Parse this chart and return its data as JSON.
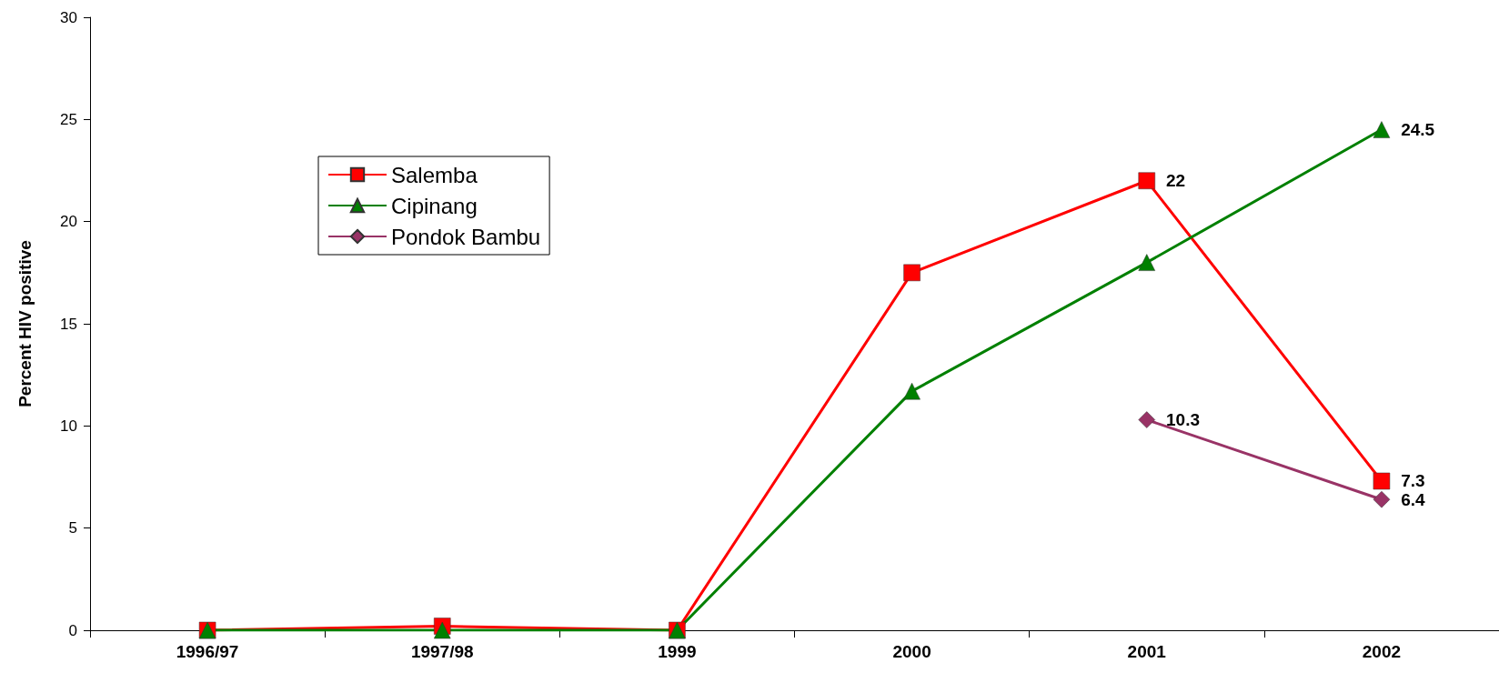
{
  "chart_data": {
    "type": "line",
    "ylabel": "Percent HIV positive",
    "categories": [
      "1996/97",
      "1997/98",
      "1999",
      "2000",
      "2001",
      "2002"
    ],
    "series": [
      {
        "name": "Salemba",
        "color": "#ff0000",
        "marker": "square",
        "values": [
          0,
          0.2,
          0,
          17.5,
          22,
          7.3
        ],
        "value_labels": [
          null,
          null,
          null,
          null,
          "22",
          "7.3"
        ]
      },
      {
        "name": "Cipinang",
        "color": "#008000",
        "marker": "triangle",
        "values": [
          0,
          0,
          0,
          11.7,
          18,
          24.5
        ],
        "value_labels": [
          null,
          null,
          null,
          null,
          null,
          "24.5"
        ]
      },
      {
        "name": "Pondok Bambu",
        "color": "#993366",
        "marker": "diamond",
        "values": [
          null,
          null,
          null,
          null,
          10.3,
          6.4
        ],
        "value_labels": [
          null,
          null,
          null,
          null,
          "10.3",
          "6.4"
        ]
      }
    ],
    "ylim": [
      0,
      30
    ],
    "yticks": [
      0,
      5,
      10,
      15,
      20,
      25,
      30
    ],
    "grid": false,
    "legend": "top left"
  }
}
